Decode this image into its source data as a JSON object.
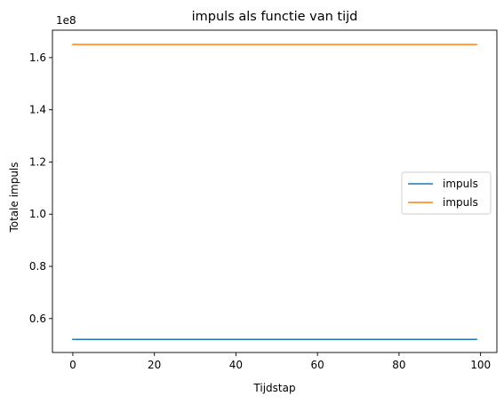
{
  "chart_data": {
    "type": "line",
    "title": "impuls als functie van tijd",
    "xlabel": "Tijdstap",
    "ylabel": "Totale impuls",
    "y_multiplier_label": "1e8",
    "xlim": [
      -5,
      104
    ],
    "ylim": [
      0.47,
      1.705
    ],
    "x_ticks": [
      0,
      20,
      40,
      60,
      80,
      100
    ],
    "x_tick_labels": [
      "0",
      "20",
      "40",
      "60",
      "80",
      "100"
    ],
    "y_ticks": [
      0.6,
      0.8,
      1.0,
      1.2,
      1.4,
      1.6
    ],
    "y_tick_labels": [
      "0.6",
      "0.8",
      "1.0",
      "1.2",
      "1.4",
      "1.6"
    ],
    "grid": false,
    "legend_position": "center right",
    "series": [
      {
        "name": "impuls",
        "color": "#1f77b4",
        "x": [
          0,
          99
        ],
        "y": [
          0.52,
          0.52
        ]
      },
      {
        "name": "impuls",
        "color": "#ff7f0e",
        "x": [
          0,
          99
        ],
        "y": [
          1.65,
          1.65
        ]
      }
    ]
  }
}
